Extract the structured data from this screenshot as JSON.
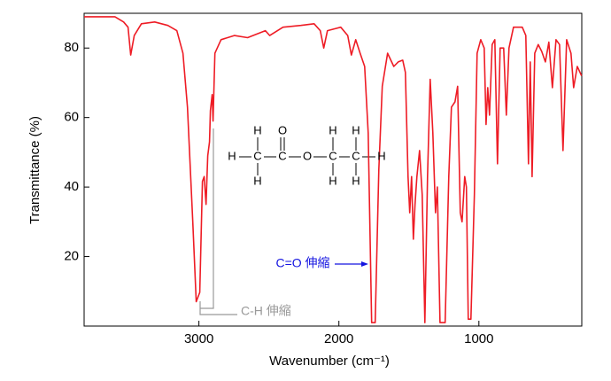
{
  "chart_data": {
    "type": "line",
    "xlabel": "Wavenumber (cm⁻¹)",
    "ylabel": "Transmittance (%)",
    "xlim": [
      3820,
      265
    ],
    "ylim": [
      0,
      90
    ],
    "xticks": [
      3000,
      2000,
      1000
    ],
    "yticks": [
      20,
      40,
      60,
      80
    ],
    "color": "#ee1c25",
    "x": [
      3820,
      3600,
      3538,
      3506,
      3487,
      3462,
      3411,
      3316,
      3222,
      3158,
      3114,
      3082,
      3044,
      3019,
      2994,
      2975,
      2962,
      2949,
      2937,
      2924,
      2918,
      2905,
      2899,
      2886,
      2842,
      2747,
      2652,
      2525,
      2494,
      2399,
      2272,
      2177,
      2133,
      2108,
      2082,
      1987,
      1937,
      1911,
      1880,
      1848,
      1816,
      1791,
      1766,
      1741,
      1715,
      1690,
      1652,
      1608,
      1576,
      1544,
      1525,
      1506,
      1494,
      1481,
      1468,
      1456,
      1443,
      1424,
      1405,
      1386,
      1367,
      1348,
      1329,
      1310,
      1297,
      1278,
      1241,
      1215,
      1196,
      1171,
      1152,
      1133,
      1120,
      1101,
      1089,
      1076,
      1057,
      1032,
      1013,
      987,
      962,
      949,
      937,
      924,
      905,
      886,
      867,
      848,
      823,
      804,
      785,
      753,
      690,
      665,
      646,
      633,
      620,
      601,
      576,
      551,
      525,
      500,
      475,
      449,
      424,
      399,
      373,
      342,
      323,
      297,
      266
    ],
    "values": [
      89,
      89,
      87.5,
      86,
      78,
      83.6,
      87,
      87.5,
      86.5,
      85,
      78.5,
      63,
      30,
      7,
      9.7,
      41.6,
      43,
      35,
      49,
      53,
      62,
      66.6,
      59,
      78.5,
      82.4,
      83.6,
      83,
      85,
      83.6,
      86,
      86.5,
      87,
      85,
      80,
      85,
      86,
      83.6,
      78,
      82.4,
      78.5,
      74.7,
      55.6,
      1,
      1,
      45,
      69,
      78.5,
      74.7,
      76,
      76.5,
      73,
      43,
      32.6,
      43,
      25,
      35,
      43,
      50.5,
      37.7,
      1,
      43,
      71,
      55.6,
      32.6,
      40,
      1,
      1,
      43,
      63,
      64.5,
      69,
      32.6,
      30,
      43,
      40,
      2,
      2,
      37.7,
      78.5,
      82.4,
      80,
      58,
      68.6,
      60.7,
      81,
      82.4,
      46.7,
      80,
      80,
      60.7,
      80,
      86,
      86,
      83.6,
      46.7,
      76,
      43,
      78.5,
      81,
      79,
      76,
      81.7,
      68.6,
      82.4,
      81,
      50.5,
      82.4,
      78.5,
      68.6,
      74.7,
      72
    ],
    "annotations": [
      "C=O 伸縮",
      "C-H 伸縮"
    ],
    "structure": [
      "H",
      "O",
      "H",
      "H",
      "H",
      "C",
      "C",
      "O",
      "C",
      "C",
      "H",
      "H",
      "H",
      "H"
    ]
  }
}
